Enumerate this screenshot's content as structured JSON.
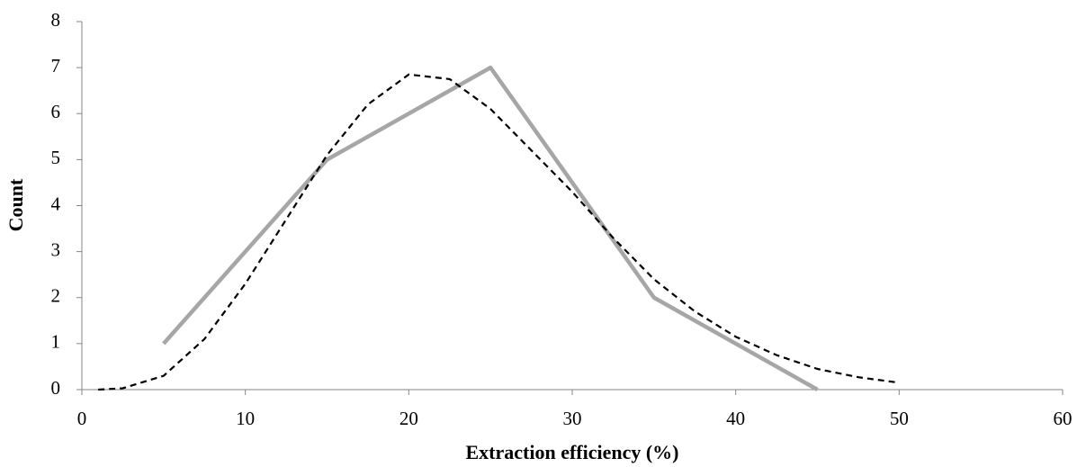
{
  "chart_data": {
    "type": "line",
    "x_label": "Extraction efficiency (%)",
    "y_label": "Count",
    "xlim": [
      0,
      60
    ],
    "xticks": [
      0,
      10,
      20,
      30,
      40,
      50,
      60
    ],
    "ylim": [
      0,
      8
    ],
    "yticks": [
      0,
      1,
      2,
      3,
      4,
      5,
      6,
      7,
      8
    ],
    "grid": false,
    "series": [
      {
        "color": "#a6a6a6",
        "line_style": "solid",
        "line_width": 4.5,
        "x": [
          5,
          15,
          25,
          35,
          45
        ],
        "values": [
          1,
          5,
          7,
          2,
          0
        ]
      },
      {
        "color": "#000000",
        "line_style": "dashed",
        "line_width": 2.2,
        "x": [
          1,
          2.5,
          5,
          7.5,
          10,
          12.5,
          15,
          17.5,
          20,
          22.5,
          25,
          27.5,
          30,
          32.5,
          35,
          37.5,
          40,
          42.5,
          45,
          47.5,
          50
        ],
        "values": [
          0,
          0.03,
          0.3,
          1.1,
          2.3,
          3.7,
          5.1,
          6.2,
          6.85,
          6.75,
          6.1,
          5.2,
          4.3,
          3.3,
          2.4,
          1.7,
          1.15,
          0.75,
          0.45,
          0.27,
          0.15
        ]
      }
    ]
  }
}
